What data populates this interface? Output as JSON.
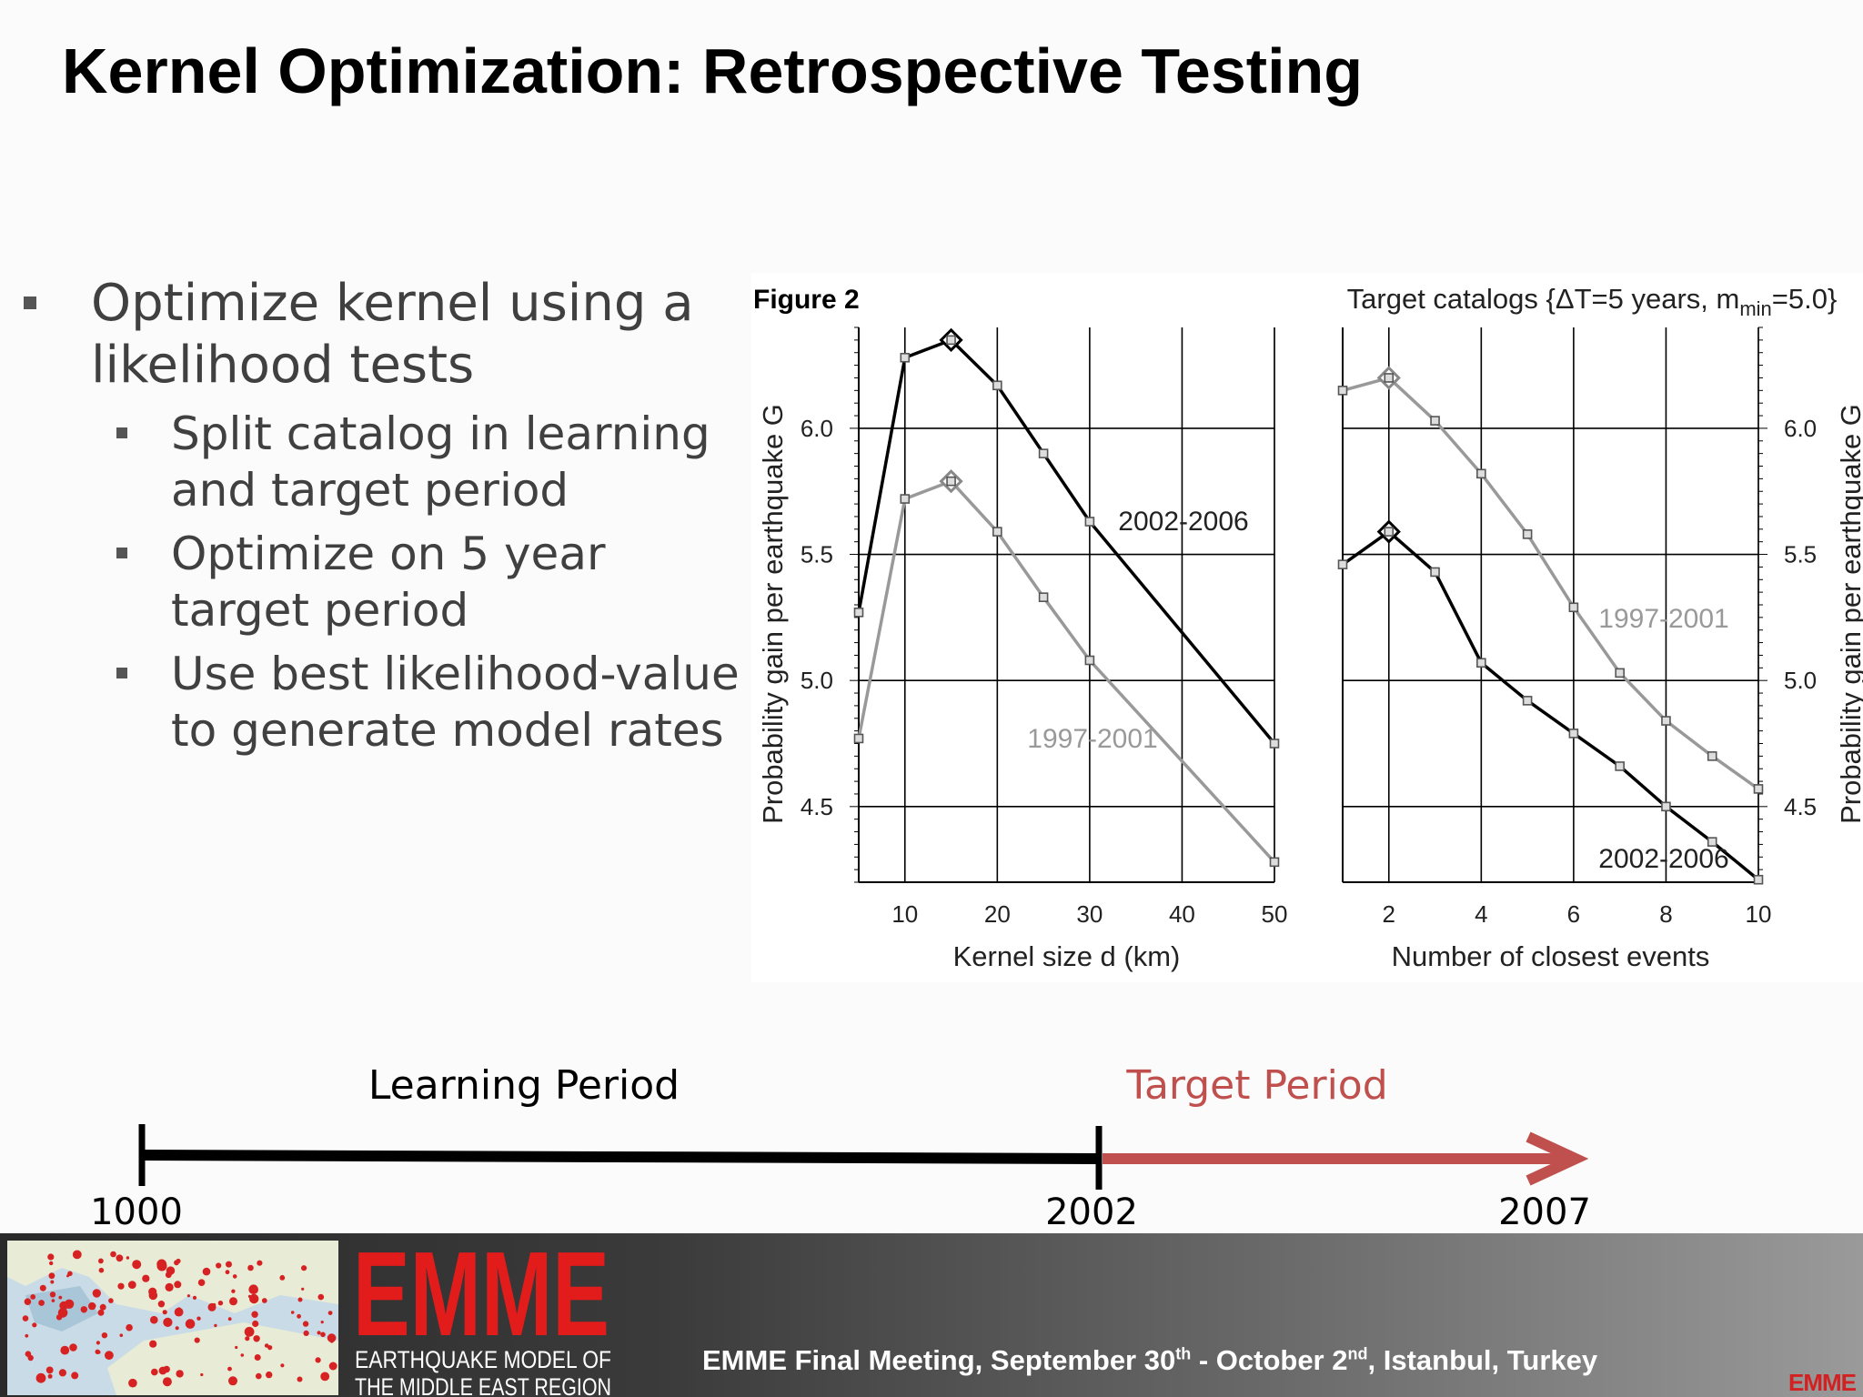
{
  "slide": {
    "title": "Kernel Optimization: Retrospective Testing",
    "bullets": [
      {
        "text": "Optimize kernel using a likelihood tests",
        "sub": [
          "Split catalog in learning and target period",
          "Optimize on 5 year target period",
          "Use best likelihood-value to generate model rates"
        ]
      }
    ]
  },
  "chart_data": [
    {
      "type": "line",
      "figure_label": "Figure 2",
      "title": "Target catalogs {ΔT=5 years, mmin=5.0}",
      "title_parts": {
        "pre": "Target catalogs {ΔT=5 years, m",
        "sub": "min",
        "post": "=5.0}"
      },
      "xlabel": "Kernel size d (km)",
      "ylabel": "Probability gain per earthquake G",
      "xlim": [
        5,
        50
      ],
      "ylim": [
        4.2,
        6.4
      ],
      "xticks": [
        10,
        20,
        30,
        40,
        50
      ],
      "yticks": [
        4.5,
        5.0,
        5.5,
        6.0
      ],
      "grid": true,
      "series": [
        {
          "name": "2002-2006",
          "color": "#000000",
          "x": [
            5,
            10,
            15,
            20,
            25,
            30,
            50
          ],
          "y": [
            5.27,
            6.28,
            6.35,
            6.17,
            5.9,
            5.63,
            4.75
          ],
          "best_index": 2
        },
        {
          "name": "1997-2001",
          "color": "#999999",
          "x": [
            5,
            10,
            15,
            20,
            25,
            30,
            50
          ],
          "y": [
            4.77,
            5.72,
            5.79,
            5.59,
            5.33,
            5.08,
            4.28
          ],
          "best_index": 2
        }
      ]
    },
    {
      "type": "line",
      "xlabel": "Number of closest events",
      "ylabel": "Probability gain per earthquake G",
      "xlim": [
        1,
        10
      ],
      "ylim": [
        4.2,
        6.4
      ],
      "xticks": [
        2,
        4,
        6,
        8,
        10
      ],
      "yticks": [
        4.5,
        5.0,
        5.5,
        6.0
      ],
      "grid": true,
      "series": [
        {
          "name": "1997-2001",
          "color": "#999999",
          "x": [
            1,
            2,
            3,
            4,
            5,
            6,
            7,
            8,
            9,
            10
          ],
          "y": [
            6.15,
            6.2,
            6.03,
            5.82,
            5.58,
            5.29,
            5.03,
            4.84,
            4.7,
            4.57
          ],
          "best_index": 1
        },
        {
          "name": "2002-2006",
          "color": "#000000",
          "x": [
            1,
            2,
            3,
            4,
            5,
            6,
            7,
            8,
            9,
            10
          ],
          "y": [
            5.46,
            5.59,
            5.43,
            5.07,
            4.92,
            4.79,
            4.66,
            4.5,
            4.36,
            4.21
          ],
          "best_index": 1
        }
      ]
    }
  ],
  "timeline": {
    "learning_label": "Learning Period",
    "target_label": "Target Period",
    "years": [
      "1000",
      "2002",
      "2007"
    ],
    "learning_color": "#000000",
    "target_color": "#c0504d"
  },
  "footer": {
    "logo_text": "EMME",
    "logo_sub1": "EARTHQUAKE MODEL OF",
    "logo_sub2": "THE MIDDLE EAST REGION",
    "meeting_parts": {
      "a": "EMME Final Meeting, September 30",
      "a_sup": "th",
      "b": " - October 2",
      "b_sup": "nd",
      "c": ", Istanbul, Turkey"
    },
    "corner_logo": "EMME",
    "brand_color": "#e21b1b"
  }
}
